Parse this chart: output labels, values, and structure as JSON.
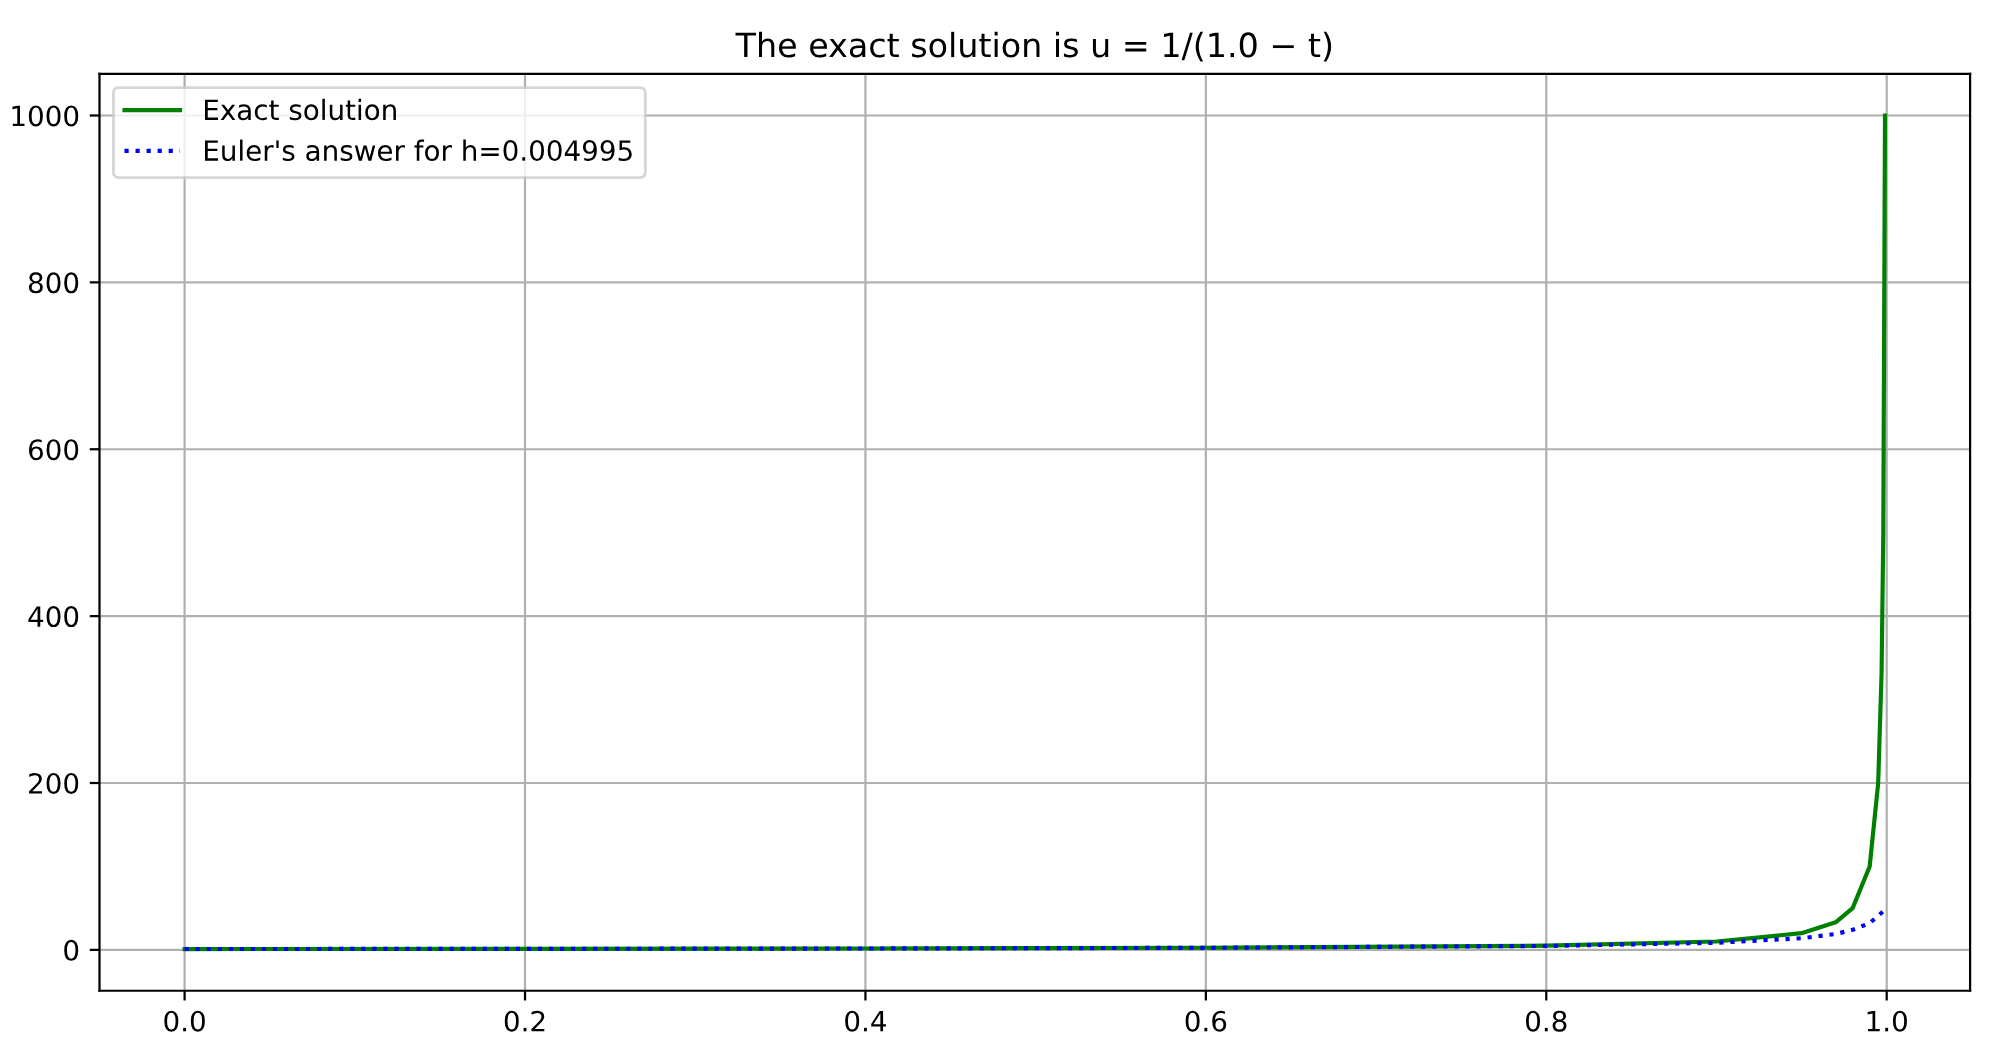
{
  "chart_data": {
    "type": "line",
    "title": "The exact solution is u = 1/(1.0 − t)",
    "series": [
      {
        "name": "Exact solution",
        "color": "#008000",
        "line_style": "solid",
        "x": [
          0,
          0.2,
          0.4,
          0.6,
          0.8,
          0.9,
          0.95,
          0.97,
          0.98,
          0.99,
          0.995,
          0.997,
          0.998,
          0.999
        ],
        "values": [
          1,
          1.25,
          1.67,
          2.5,
          5,
          10,
          20,
          33,
          50,
          100,
          200,
          333,
          500,
          1000
        ]
      },
      {
        "name": "Euler's answer for h=0.004995",
        "color": "#0000ff",
        "line_style": "dotted",
        "x": [
          0,
          0.2,
          0.4,
          0.6,
          0.8,
          0.9,
          0.95,
          0.97,
          0.98,
          0.99,
          0.999
        ],
        "values": [
          1,
          1.24,
          1.65,
          2.45,
          4.7,
          8.5,
          14,
          19,
          24,
          32,
          48
        ]
      }
    ],
    "xlim": [
      -0.05,
      1.049
    ],
    "ylim": [
      -49,
      1050
    ],
    "xticks": [
      {
        "value": 0,
        "label": "0.0"
      },
      {
        "value": 0.2,
        "label": "0.2"
      },
      {
        "value": 0.4,
        "label": "0.4"
      },
      {
        "value": 0.6,
        "label": "0.6"
      },
      {
        "value": 0.8,
        "label": "0.8"
      },
      {
        "value": 1,
        "label": "1.0"
      }
    ],
    "yticks": [
      0,
      200,
      400,
      600,
      800,
      1000
    ],
    "grid": true,
    "legend": "top left",
    "marker": "none"
  }
}
